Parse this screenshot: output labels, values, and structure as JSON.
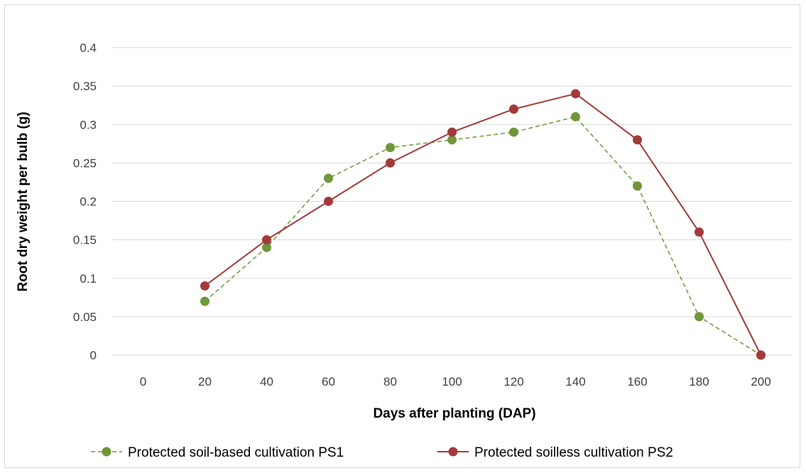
{
  "chart_data": {
    "type": "line",
    "x": [
      0,
      20,
      40,
      60,
      80,
      100,
      120,
      140,
      160,
      180,
      200
    ],
    "xlabel": "Days after planting (DAP)",
    "ylabel": "Root dry weight per bulb (g)",
    "ylim": [
      0,
      0.4
    ],
    "yticks": [
      "0",
      "0.05",
      "0.1",
      "0.15",
      "0.2",
      "0.25",
      "0.3",
      "0.35",
      "0.4"
    ],
    "xticks": [
      "0",
      "20",
      "40",
      "60",
      "80",
      "100",
      "120",
      "140",
      "160",
      "180",
      "200"
    ],
    "grid": true,
    "legend_position": "bottom",
    "series": [
      {
        "name": "Protected soil-based cultivation PS1",
        "color": "#70963a",
        "line_style": "dashed",
        "values": [
          null,
          0.07,
          0.14,
          0.23,
          0.27,
          0.28,
          0.29,
          0.31,
          0.22,
          0.05,
          0
        ]
      },
      {
        "name": "Protected soilless cultivation PS2",
        "color": "#a33a3a",
        "line_style": "solid",
        "values": [
          null,
          0.09,
          0.15,
          0.2,
          0.25,
          0.29,
          0.32,
          0.34,
          0.28,
          0.16,
          0
        ]
      }
    ]
  }
}
